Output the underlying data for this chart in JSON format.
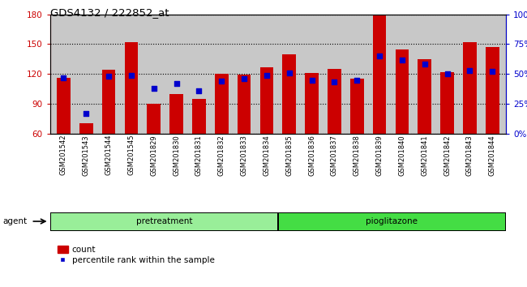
{
  "title": "GDS4132 / 222852_at",
  "categories": [
    "GSM201542",
    "GSM201543",
    "GSM201544",
    "GSM201545",
    "GSM201829",
    "GSM201830",
    "GSM201831",
    "GSM201832",
    "GSM201833",
    "GSM201834",
    "GSM201835",
    "GSM201836",
    "GSM201837",
    "GSM201838",
    "GSM201839",
    "GSM201840",
    "GSM201841",
    "GSM201842",
    "GSM201843",
    "GSM201844"
  ],
  "count_values": [
    116,
    70,
    124,
    152,
    90,
    100,
    95,
    120,
    119,
    127,
    140,
    121,
    125,
    115,
    180,
    145,
    135,
    122,
    152,
    147
  ],
  "percentile_values": [
    47,
    17,
    48,
    49,
    38,
    42,
    36,
    44,
    46,
    49,
    51,
    45,
    43,
    45,
    65,
    62,
    58,
    50,
    53,
    52
  ],
  "pretreatment_count": 10,
  "pioglitazone_count": 10,
  "ylim_left": [
    60,
    180
  ],
  "ylim_right": [
    0,
    100
  ],
  "yticks_left": [
    60,
    90,
    120,
    150,
    180
  ],
  "ytick_labels_left": [
    "60",
    "90",
    "120",
    "150",
    "180"
  ],
  "ytick_labels_right": [
    "0%",
    "25%",
    "50%",
    "75%",
    "100%"
  ],
  "yticks_right": [
    0,
    25,
    50,
    75,
    100
  ],
  "bar_color": "#cc0000",
  "dot_color": "#0000cc",
  "bg_color": "#c8c8c8",
  "pretreatment_color": "#99ee99",
  "pioglitazone_color": "#44dd44",
  "axis_left_color": "#cc0000",
  "axis_right_color": "#0000cc",
  "legend_count_label": "count",
  "legend_pct_label": "percentile rank within the sample",
  "agent_label": "agent",
  "pretreatment_label": "pretreatment",
  "pioglitazone_label": "pioglitazone"
}
